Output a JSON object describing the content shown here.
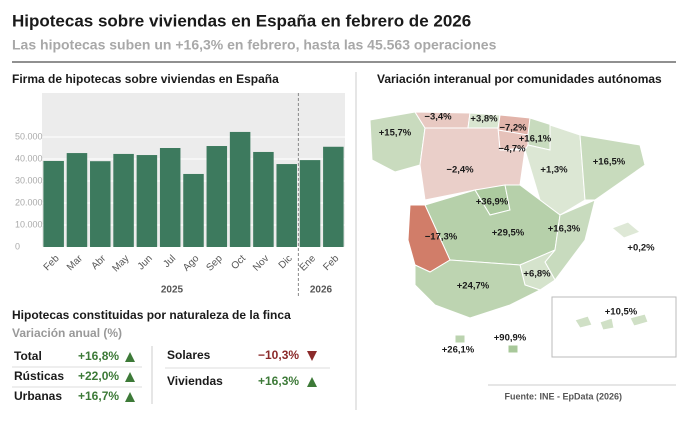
{
  "header": {
    "title": "Hipotecas sobre viviendas en España en febrero de 2026",
    "subtitle": "Las hipotecas suben un +16,3% en febrero, hasta las 45.563 operaciones"
  },
  "chart_data": {
    "type": "bar",
    "title": "Firma de hipotecas sobre viviendas en España",
    "categories": [
      "Feb",
      "Mar",
      "Abr",
      "May",
      "Jun",
      "Jul",
      "Ago",
      "Sep",
      "Oct",
      "Nov",
      "Dic",
      "Ene",
      "Feb"
    ],
    "x_groups": [
      "2025",
      "2026"
    ],
    "values": [
      39100,
      42700,
      39000,
      42300,
      41800,
      45000,
      33200,
      45900,
      52300,
      43200,
      37700,
      39500,
      45563
    ],
    "color": "#3d7a5e",
    "ylim": [
      0,
      70000
    ],
    "yticks": [
      0,
      {
        "value": 10000,
        "label": "10.000"
      },
      {
        "value": 20000,
        "label": "20.000"
      },
      {
        "value": 30000,
        "label": "30.000"
      },
      {
        "value": 40000,
        "label": "40.000"
      },
      {
        "value": 50000,
        "label": "50.000"
      }
    ],
    "grid": true
  },
  "breakdown": {
    "title": "Hipotecas constituidas por naturaleza de la finca",
    "subtitle": "Variación anual (%)",
    "rows": [
      {
        "name": "Total",
        "value": 16.8,
        "label": "+16,8%"
      },
      {
        "name": "Rústicas",
        "value": 22.0,
        "label": "+22,0%"
      },
      {
        "name": "Urbanas",
        "value": 16.7,
        "label": "+16,7%"
      },
      {
        "name": "Solares",
        "value": -10.3,
        "label": "−10,3%"
      },
      {
        "name": "Viviendas",
        "value": 16.3,
        "label": "+16,3%"
      }
    ]
  },
  "map": {
    "title": "Variación interanual por comunidades autónomas",
    "regions": [
      {
        "value": 15.7,
        "label": "+15,7%"
      },
      {
        "value": -3.4,
        "label": "−3,4%"
      },
      {
        "value": 3.8,
        "label": "+3,8%"
      },
      {
        "value": -7.2,
        "label": "−7,2%"
      },
      {
        "value": 16.1,
        "label": "+16,1%"
      },
      {
        "value": -4.7,
        "label": "−4,7%"
      },
      {
        "value": 1.3,
        "label": "+1,3%"
      },
      {
        "value": 16.5,
        "label": "+16,5%"
      },
      {
        "value": -2.4,
        "label": "−2,4%"
      },
      {
        "value": 36.9,
        "label": "+36,9%"
      },
      {
        "value": 29.5,
        "label": "+29,5%"
      },
      {
        "value": -17.3,
        "label": "−17,3%"
      },
      {
        "value": 16.3,
        "label": "+16,3%"
      },
      {
        "value": 0.2,
        "label": "+0,2%"
      },
      {
        "value": 6.8,
        "label": "+6,8%"
      },
      {
        "value": 24.7,
        "label": "+24,7%"
      },
      {
        "value": 10.5,
        "label": "+10,5%"
      },
      {
        "value": 26.1,
        "label": "+26,1%"
      },
      {
        "value": 90.9,
        "label": "+90,9%"
      }
    ]
  },
  "source": "Fuente: INE - EpData (2026)"
}
